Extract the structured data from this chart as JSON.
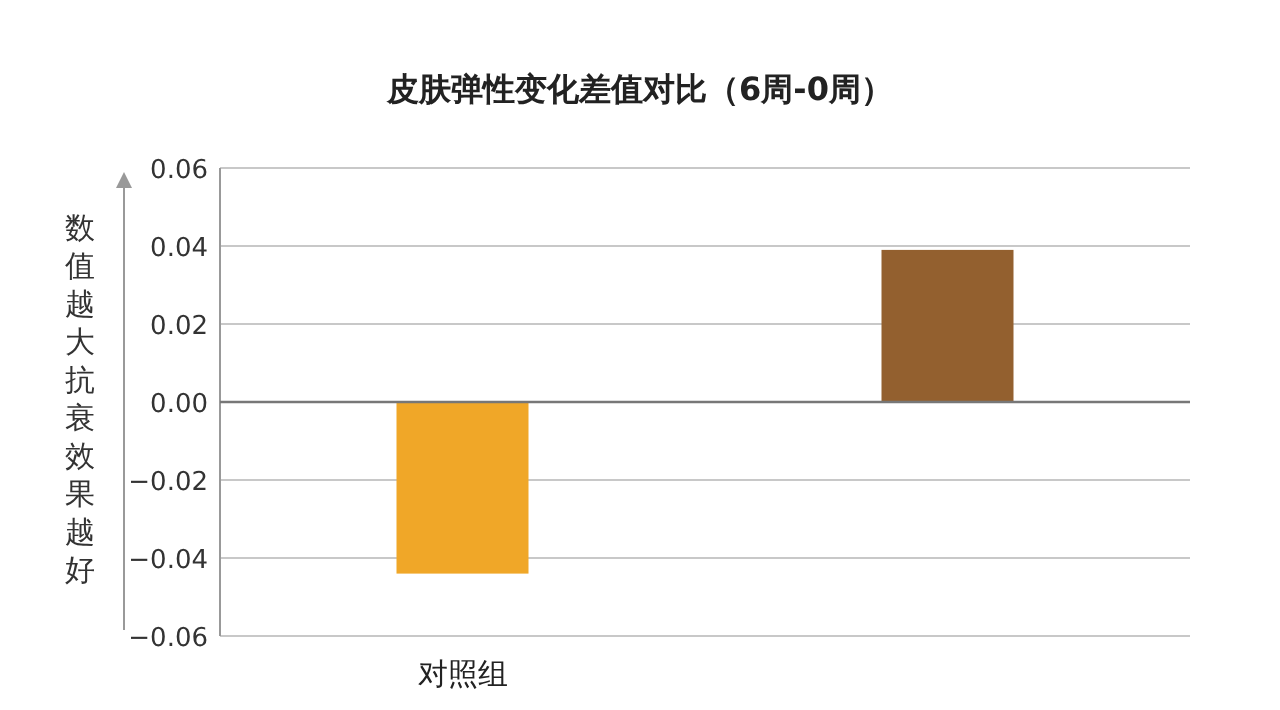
{
  "chart_data": {
    "type": "bar",
    "title": "皮肤弹性变化差值对比（6周-0周）",
    "ylabel": "数值越大抗衰效果越好",
    "categories": [
      "对照组",
      null
    ],
    "values": [
      -0.044,
      0.039
    ],
    "colors": [
      "#f0a728",
      "#93602f"
    ],
    "ylim": [
      -0.06,
      0.06
    ],
    "yticks": [
      {
        "value": -0.06,
        "label": "−0.06"
      },
      {
        "value": -0.04,
        "label": "−0.04"
      },
      {
        "value": -0.02,
        "label": "−0.02"
      },
      {
        "value": 0,
        "label": "0.00"
      },
      {
        "value": 0.02,
        "label": "0.02"
      },
      {
        "value": 0.04,
        "label": "0.04"
      },
      {
        "value": 0.06,
        "label": "0.06"
      }
    ],
    "grid": "y"
  }
}
